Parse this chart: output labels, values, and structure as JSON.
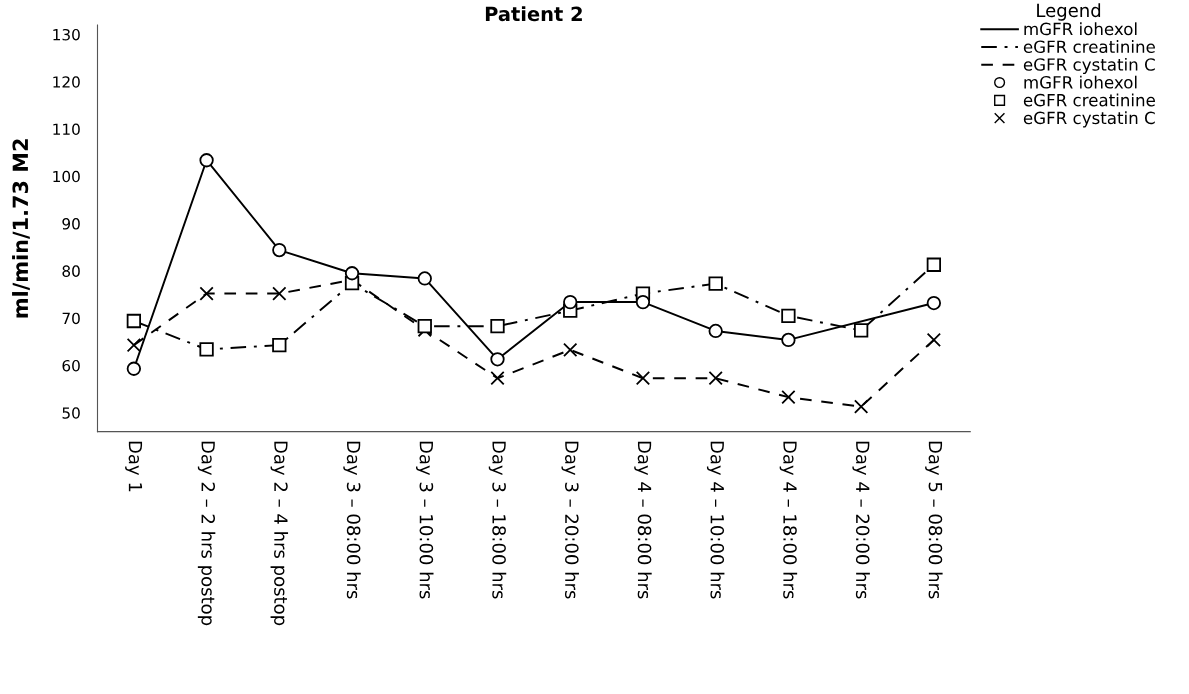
{
  "chart_data": {
    "type": "line",
    "title": "Patient 2",
    "ylabel": "ml/min/1.73 M2",
    "legend_title": "Legend",
    "categories": [
      "Day 1",
      "Day 2 – 2 hrs postop",
      "Day 2 – 4 hrs postop",
      "Day 3 – 08:00 hrs",
      "Day 3 – 10:00 hrs",
      "Day 3 – 18:00 hrs",
      "Day 3 – 20:00 hrs",
      "Day 4 – 08:00 hrs",
      "Day 4 – 10:00 hrs",
      "Day 4 – 18:00 hrs",
      "Day 4 – 20:00 hrs",
      "Day 5 – 08:00 hrs"
    ],
    "series": [
      {
        "name": "mGFR iohexol",
        "color": "#000000",
        "line_style": "solid",
        "marker": "circle",
        "values": [
          59.3,
          103.4,
          84.4,
          79.5,
          78.4,
          61.3,
          73.4,
          73.4,
          67.3,
          65.4,
          null,
          73.2
        ]
      },
      {
        "name": "eGFR creatinine",
        "color": "#000000",
        "line_style": "dashdot",
        "marker": "square",
        "values": [
          69.4,
          63.4,
          64.3,
          77.4,
          68.3,
          68.3,
          71.6,
          75.2,
          77.3,
          70.5,
          67.4,
          81.3
        ]
      },
      {
        "name": "eGFR cystatin C",
        "color": "#000000",
        "line_style": "dashed",
        "marker": "cross",
        "values": [
          64.3,
          75.2,
          75.2,
          78.1,
          67.5,
          57.3,
          63.3,
          57.3,
          57.3,
          53.3,
          51.3,
          65.4
        ]
      }
    ],
    "ylim": [
      46,
      132
    ],
    "yticks": [
      50,
      60,
      70,
      80,
      90,
      100,
      110,
      120,
      130
    ],
    "grid": false,
    "legend": "top right"
  }
}
